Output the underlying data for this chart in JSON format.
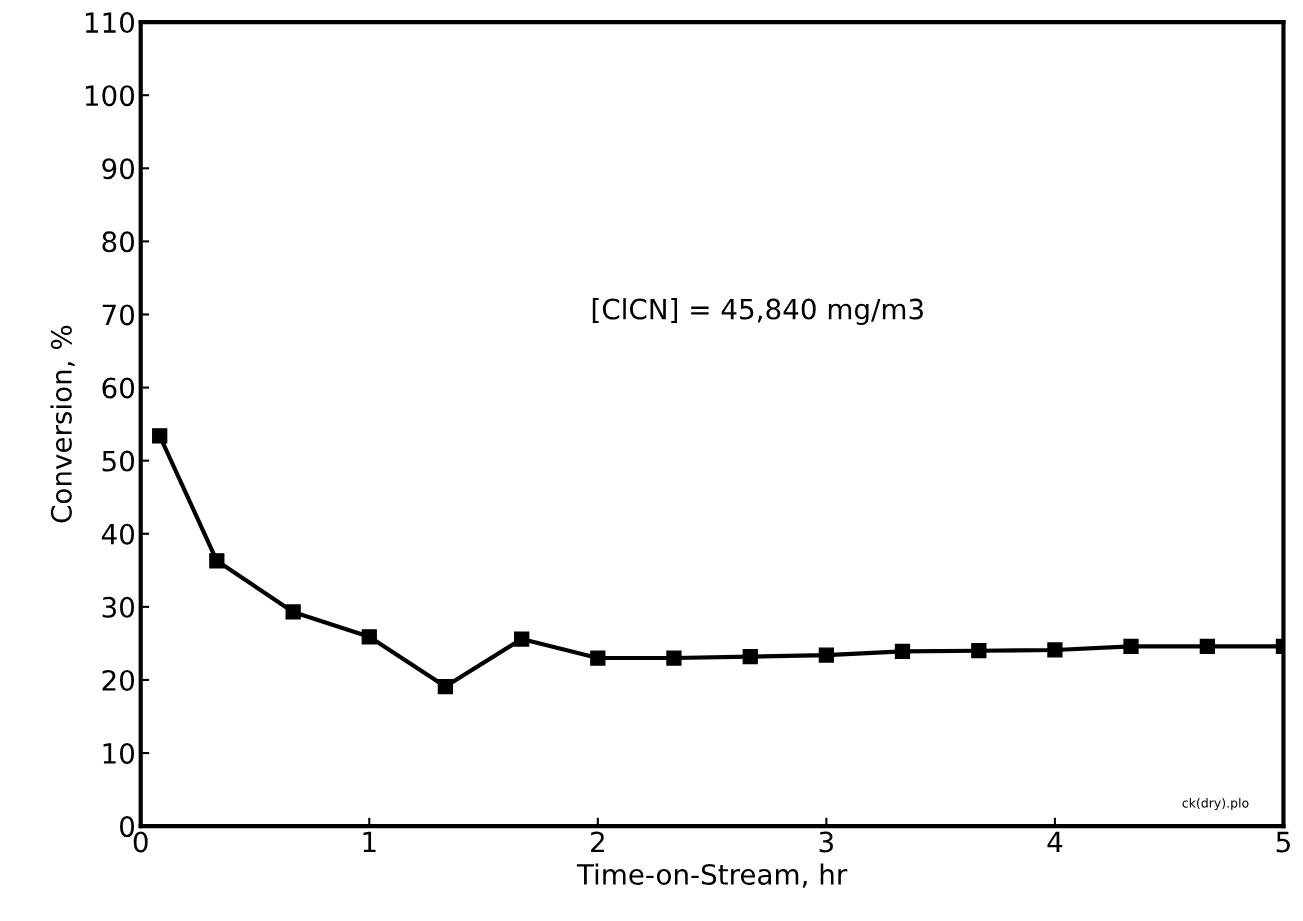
{
  "chart_data": {
    "type": "line",
    "xlabel": "Time-on-Stream, hr",
    "ylabel": "Conversion, %",
    "x": [
      0.083,
      0.333,
      0.667,
      1,
      1.333,
      1.667,
      2,
      2.333,
      2.667,
      3,
      3.333,
      3.667,
      4,
      4.333,
      4.667,
      5
    ],
    "series": [
      {
        "color": "#000000",
        "values": [
          53.4,
          36.3,
          29.3,
          25.9,
          19.1,
          25.6,
          23.0,
          23.0,
          23.2,
          23.4,
          23.9,
          24.0,
          24.1,
          24.6,
          24.6,
          24.6
        ]
      }
    ],
    "marker": "square",
    "line_style": "solid",
    "xlim": [
      0,
      5
    ],
    "xticks": [
      0,
      1,
      2,
      3,
      4,
      5
    ],
    "ylim": [
      0,
      110
    ],
    "yticks": [
      0,
      10,
      20,
      30,
      40,
      50,
      60,
      70,
      80,
      90,
      100,
      110
    ],
    "grid": false,
    "legend": false,
    "annotations": [
      "[ClCN] = 45,840 mg/m3",
      "ck(dry).plo"
    ]
  }
}
